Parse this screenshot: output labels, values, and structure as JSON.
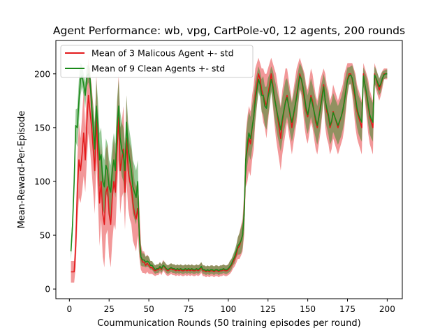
{
  "chart_data": {
    "type": "line",
    "title": "Agent Performance: wb, vpg, CartPole-v0, 12 agents, 200 rounds",
    "xlabel": "Coummunication Rounds (50 training episodes per round)",
    "ylabel": "Mean-Reward-Per-Episode",
    "xlim": [
      -8.5,
      209.5
    ],
    "ylim": [
      -9,
      231
    ],
    "xticks": [
      0,
      25,
      50,
      75,
      100,
      125,
      150,
      175,
      200
    ],
    "yticks": [
      0,
      50,
      100,
      150,
      200
    ],
    "legend_position": "upper-left",
    "grid": false,
    "series": [
      {
        "name": "Mean of 3 Malicous Agent +- std",
        "color": "#e31a1c",
        "x": [
          1,
          2,
          3,
          4,
          5,
          6,
          7,
          8,
          9,
          10,
          11,
          12,
          13,
          14,
          15,
          16,
          17,
          18,
          19,
          20,
          21,
          22,
          23,
          24,
          25,
          26,
          27,
          28,
          29,
          30,
          31,
          32,
          33,
          34,
          35,
          36,
          37,
          38,
          39,
          40,
          41,
          42,
          43,
          44,
          45,
          46,
          47,
          48,
          49,
          50,
          51,
          52,
          53,
          54,
          55,
          56,
          57,
          58,
          59,
          60,
          61,
          62,
          63,
          64,
          65,
          66,
          67,
          68,
          69,
          70,
          71,
          72,
          73,
          74,
          75,
          76,
          77,
          78,
          79,
          80,
          81,
          82,
          83,
          84,
          85,
          86,
          87,
          88,
          89,
          90,
          91,
          92,
          93,
          94,
          95,
          96,
          97,
          98,
          99,
          100,
          101,
          102,
          103,
          104,
          105,
          106,
          107,
          108,
          109,
          110,
          111,
          112,
          113,
          114,
          115,
          116,
          117,
          118,
          119,
          120,
          121,
          122,
          123,
          124,
          125,
          126,
          127,
          128,
          129,
          130,
          131,
          132,
          133,
          134,
          135,
          136,
          137,
          138,
          139,
          140,
          141,
          142,
          143,
          144,
          145,
          146,
          147,
          148,
          149,
          150,
          151,
          152,
          153,
          154,
          155,
          156,
          157,
          158,
          159,
          160,
          161,
          162,
          163,
          164,
          165,
          166,
          167,
          168,
          169,
          170,
          171,
          172,
          173,
          174,
          175,
          176,
          177,
          178,
          179,
          180,
          181,
          182,
          183,
          184,
          185,
          186,
          187,
          188,
          189,
          190,
          191,
          192,
          193,
          194,
          195,
          196,
          197,
          198,
          199,
          200
        ],
        "values": [
          16,
          16,
          16,
          40,
          90,
          120,
          110,
          125,
          145,
          120,
          155,
          180,
          165,
          150,
          130,
          110,
          160,
          120,
          80,
          100,
          70,
          60,
          90,
          95,
          70,
          60,
          85,
          100,
          90,
          130,
          160,
          110,
          120,
          130,
          90,
          140,
          110,
          100,
          95,
          80,
          70,
          65,
          75,
          55,
          30,
          25,
          25,
          22,
          24,
          22,
          20,
          20,
          18,
          17,
          18,
          18,
          20,
          18,
          22,
          20,
          18,
          17,
          18,
          19,
          18,
          18,
          17,
          18,
          17,
          18,
          17,
          17,
          18,
          17,
          18,
          17,
          18,
          17,
          17,
          18,
          17,
          18,
          20,
          17,
          17,
          16,
          17,
          16,
          17,
          17,
          16,
          17,
          17,
          16,
          17,
          17,
          18,
          17,
          17,
          18,
          20,
          22,
          25,
          28,
          32,
          38,
          40,
          45,
          50,
          70,
          120,
          130,
          140,
          135,
          150,
          160,
          180,
          190,
          200,
          195,
          185,
          180,
          175,
          170,
          180,
          190,
          200,
          190,
          180,
          170,
          160,
          150,
          140,
          155,
          165,
          175,
          180,
          170,
          160,
          150,
          160,
          170,
          180,
          190,
          200,
          195,
          185,
          175,
          165,
          160,
          170,
          180,
          175,
          165,
          155,
          150,
          160,
          170,
          180,
          190,
          175,
          165,
          160,
          150,
          155,
          165,
          160,
          155,
          150,
          155,
          160,
          165,
          175,
          185,
          195,
          200,
          200,
          195,
          185,
          175,
          165,
          160,
          155,
          150,
          200,
          190,
          180,
          170,
          160,
          155,
          150,
          200,
          195,
          190,
          185,
          190,
          195,
          200,
          200,
          200
        ],
        "std": [
          10,
          10,
          10,
          20,
          30,
          35,
          30,
          35,
          40,
          30,
          35,
          35,
          35,
          40,
          40,
          40,
          40,
          40,
          40,
          35,
          40,
          40,
          40,
          40,
          40,
          40,
          40,
          40,
          35,
          40,
          40,
          40,
          35,
          40,
          35,
          40,
          35,
          35,
          35,
          35,
          30,
          30,
          25,
          25,
          12,
          10,
          10,
          8,
          8,
          8,
          6,
          6,
          5,
          5,
          5,
          5,
          5,
          5,
          5,
          5,
          5,
          5,
          5,
          5,
          5,
          5,
          5,
          5,
          5,
          5,
          5,
          5,
          5,
          5,
          5,
          5,
          5,
          5,
          5,
          5,
          5,
          5,
          5,
          5,
          5,
          5,
          5,
          5,
          5,
          5,
          5,
          5,
          5,
          5,
          5,
          5,
          5,
          5,
          5,
          5,
          6,
          6,
          6,
          7,
          8,
          10,
          12,
          14,
          15,
          20,
          25,
          30,
          30,
          30,
          30,
          30,
          25,
          20,
          15,
          15,
          20,
          25,
          25,
          30,
          25,
          20,
          15,
          20,
          25,
          30,
          30,
          30,
          30,
          30,
          30,
          30,
          25,
          25,
          25,
          25,
          25,
          25,
          25,
          20,
          15,
          15,
          20,
          25,
          25,
          25,
          25,
          25,
          25,
          25,
          25,
          25,
          25,
          25,
          20,
          15,
          25,
          25,
          25,
          25,
          25,
          25,
          25,
          25,
          25,
          25,
          25,
          25,
          25,
          20,
          15,
          10,
          10,
          15,
          20,
          25,
          25,
          25,
          25,
          25,
          10,
          15,
          20,
          25,
          25,
          25,
          25,
          10,
          10,
          10,
          10,
          10,
          8,
          5,
          5,
          5
        ]
      },
      {
        "name": "Mean of 9 Clean Agents +- std",
        "color": "#1a8a1a",
        "x": [
          1,
          2,
          3,
          4,
          5,
          6,
          7,
          8,
          9,
          10,
          11,
          12,
          13,
          14,
          15,
          16,
          17,
          18,
          19,
          20,
          21,
          22,
          23,
          24,
          25,
          26,
          27,
          28,
          29,
          30,
          31,
          32,
          33,
          34,
          35,
          36,
          37,
          38,
          39,
          40,
          41,
          42,
          43,
          44,
          45,
          46,
          47,
          48,
          49,
          50,
          51,
          52,
          53,
          54,
          55,
          56,
          57,
          58,
          59,
          60,
          61,
          62,
          63,
          64,
          65,
          66,
          67,
          68,
          69,
          70,
          71,
          72,
          73,
          74,
          75,
          76,
          77,
          78,
          79,
          80,
          81,
          82,
          83,
          84,
          85,
          86,
          87,
          88,
          89,
          90,
          91,
          92,
          93,
          94,
          95,
          96,
          97,
          98,
          99,
          100,
          101,
          102,
          103,
          104,
          105,
          106,
          107,
          108,
          109,
          110,
          111,
          112,
          113,
          114,
          115,
          116,
          117,
          118,
          119,
          120,
          121,
          122,
          123,
          124,
          125,
          126,
          127,
          128,
          129,
          130,
          131,
          132,
          133,
          134,
          135,
          136,
          137,
          138,
          139,
          140,
          141,
          142,
          143,
          144,
          145,
          146,
          147,
          148,
          149,
          150,
          151,
          152,
          153,
          154,
          155,
          156,
          157,
          158,
          159,
          160,
          161,
          162,
          163,
          164,
          165,
          166,
          167,
          168,
          169,
          170,
          171,
          172,
          173,
          174,
          175,
          176,
          177,
          178,
          179,
          180,
          181,
          182,
          183,
          184,
          185,
          186,
          187,
          188,
          189,
          190,
          191,
          192,
          193,
          194,
          195,
          196,
          197,
          198,
          199,
          200
        ],
        "values": [
          35,
          60,
          100,
          152,
          150,
          175,
          195,
          198,
          190,
          180,
          198,
          200,
          195,
          170,
          150,
          130,
          170,
          150,
          120,
          125,
          100,
          95,
          115,
          110,
          95,
          90,
          110,
          120,
          110,
          150,
          170,
          140,
          130,
          125,
          110,
          155,
          130,
          120,
          110,
          95,
          90,
          85,
          100,
          50,
          30,
          27,
          27,
          25,
          26,
          25,
          22,
          22,
          20,
          18,
          19,
          19,
          21,
          19,
          22,
          21,
          19,
          18,
          19,
          20,
          19,
          19,
          18,
          19,
          18,
          19,
          18,
          18,
          19,
          18,
          19,
          18,
          19,
          18,
          18,
          19,
          18,
          19,
          21,
          18,
          18,
          17,
          18,
          17,
          18,
          18,
          17,
          18,
          18,
          17,
          18,
          18,
          19,
          18,
          18,
          19,
          21,
          23,
          27,
          30,
          35,
          40,
          42,
          45,
          50,
          70,
          120,
          135,
          145,
          140,
          150,
          160,
          175,
          185,
          195,
          190,
          180,
          180,
          170,
          168,
          178,
          185,
          195,
          188,
          178,
          170,
          162,
          155,
          148,
          158,
          166,
          174,
          178,
          170,
          162,
          155,
          162,
          170,
          178,
          188,
          198,
          195,
          188,
          178,
          168,
          162,
          170,
          178,
          172,
          165,
          158,
          152,
          160,
          168,
          178,
          188,
          175,
          168,
          162,
          152,
          156,
          164,
          160,
          156,
          152,
          156,
          160,
          166,
          174,
          184,
          194,
          198,
          199,
          196,
          188,
          178,
          168,
          162,
          158,
          155,
          198,
          190,
          182,
          172,
          162,
          158,
          155,
          199,
          196,
          192,
          188,
          191,
          196,
          199,
          200,
          200
        ],
        "std": [
          8,
          8,
          10,
          15,
          18,
          20,
          15,
          10,
          10,
          12,
          10,
          8,
          10,
          15,
          20,
          25,
          25,
          25,
          25,
          25,
          25,
          25,
          25,
          25,
          25,
          25,
          25,
          25,
          25,
          25,
          25,
          25,
          25,
          25,
          25,
          25,
          25,
          25,
          25,
          25,
          25,
          25,
          20,
          15,
          8,
          6,
          6,
          5,
          5,
          5,
          4,
          4,
          4,
          4,
          4,
          4,
          4,
          4,
          4,
          4,
          4,
          4,
          4,
          4,
          4,
          4,
          4,
          4,
          4,
          4,
          4,
          4,
          4,
          4,
          4,
          4,
          4,
          4,
          4,
          4,
          4,
          4,
          4,
          4,
          4,
          4,
          4,
          4,
          4,
          4,
          4,
          4,
          4,
          4,
          4,
          4,
          4,
          4,
          4,
          4,
          5,
          5,
          5,
          6,
          6,
          8,
          10,
          12,
          12,
          15,
          18,
          20,
          20,
          20,
          20,
          20,
          18,
          15,
          12,
          12,
          15,
          18,
          18,
          20,
          18,
          15,
          12,
          15,
          18,
          20,
          20,
          20,
          20,
          20,
          20,
          20,
          18,
          18,
          18,
          18,
          18,
          18,
          18,
          15,
          12,
          12,
          15,
          18,
          18,
          18,
          18,
          18,
          18,
          18,
          18,
          18,
          18,
          18,
          15,
          12,
          18,
          18,
          18,
          18,
          18,
          18,
          18,
          18,
          18,
          18,
          18,
          18,
          18,
          15,
          12,
          8,
          8,
          12,
          15,
          18,
          18,
          18,
          18,
          18,
          8,
          12,
          15,
          18,
          18,
          18,
          18,
          8,
          8,
          8,
          8,
          8,
          6,
          4,
          4,
          4
        ]
      }
    ]
  }
}
